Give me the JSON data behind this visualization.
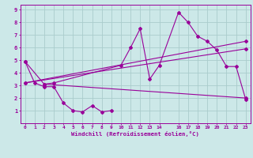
{
  "xlabel": "Windchill (Refroidissement éolien,°C)",
  "bg_color": "#cce8e8",
  "grid_color": "#aacccc",
  "line_color": "#990099",
  "xlim": [
    -0.5,
    23.5
  ],
  "ylim": [
    0,
    9.4
  ],
  "xtick_positions": [
    0,
    1,
    2,
    3,
    4,
    5,
    6,
    7,
    8,
    9,
    10,
    11,
    12,
    13,
    14,
    16,
    17,
    18,
    19,
    20,
    21,
    22,
    23
  ],
  "xtick_labels": [
    "0",
    "1",
    "2",
    "3",
    "4",
    "5",
    "6",
    "7",
    "8",
    "9",
    "10",
    "11",
    "12",
    "13",
    "14",
    "16",
    "17",
    "18",
    "19",
    "20",
    "21",
    "22",
    "23"
  ],
  "ytick_positions": [
    1,
    2,
    3,
    4,
    5,
    6,
    7,
    8,
    9
  ],
  "ytick_labels": [
    "1",
    "2",
    "3",
    "4",
    "5",
    "6",
    "7",
    "8",
    "9"
  ],
  "line1_x": [
    0,
    1,
    2,
    3,
    4,
    5,
    6,
    7,
    8,
    9
  ],
  "line1_y": [
    4.9,
    3.2,
    2.9,
    2.9,
    1.6,
    1.0,
    0.9,
    1.4,
    0.9,
    1.0
  ],
  "line2_x": [
    0,
    2,
    3,
    10,
    11,
    12,
    13,
    14,
    16,
    17,
    18,
    19,
    20,
    21,
    22,
    23
  ],
  "line2_y": [
    4.9,
    3.1,
    3.2,
    4.6,
    6.0,
    7.5,
    3.5,
    4.6,
    8.8,
    8.0,
    6.9,
    6.5,
    5.8,
    4.5,
    4.5,
    1.9
  ],
  "line3_x": [
    0,
    23
  ],
  "line3_y": [
    3.2,
    6.5
  ],
  "line4_x": [
    0,
    23
  ],
  "line4_y": [
    3.2,
    5.9
  ],
  "line5_x": [
    2,
    23
  ],
  "line5_y": [
    3.1,
    2.0
  ]
}
